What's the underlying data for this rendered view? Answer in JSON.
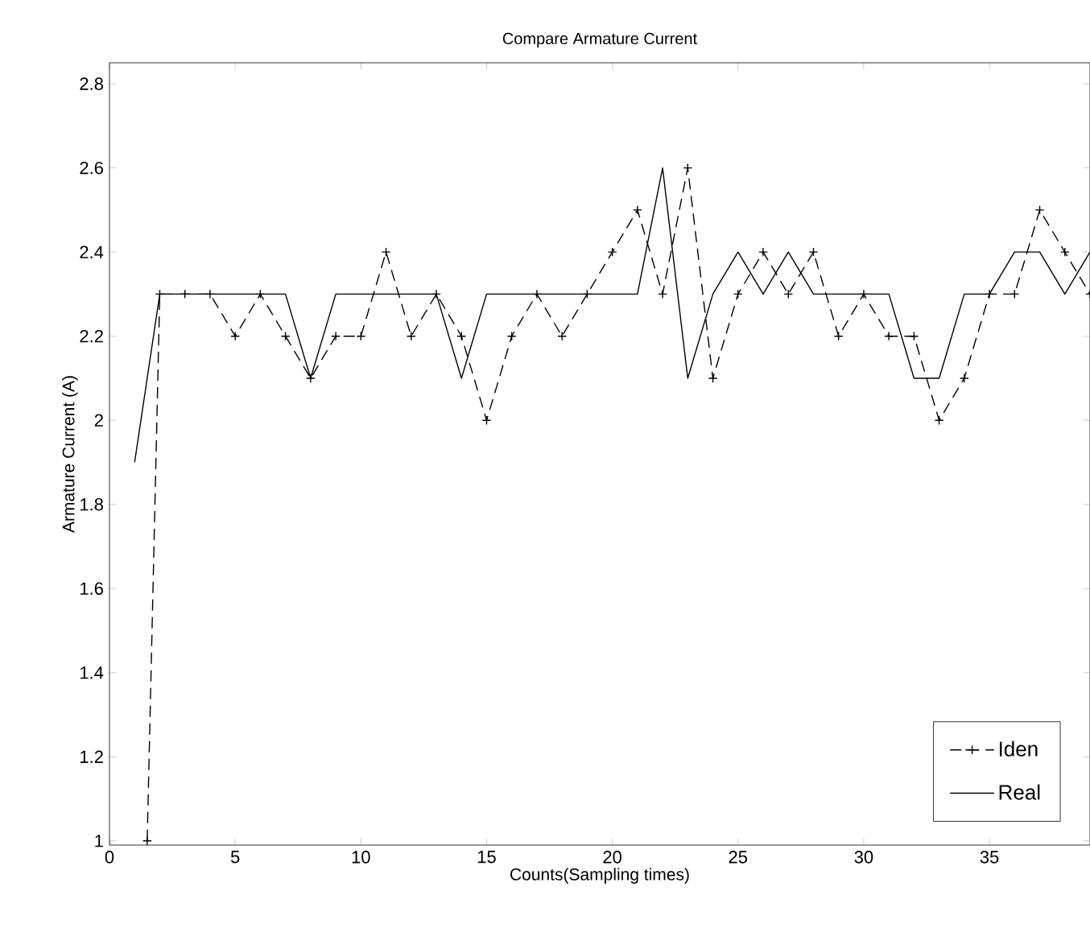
{
  "chart_data": {
    "type": "line",
    "title": "Compare Armature Current",
    "xlabel": "Counts(Sampling times)",
    "ylabel": "Armature Current (A)",
    "xlim": [
      0,
      39
    ],
    "ylim": [
      0.99,
      2.85
    ],
    "xticks": [
      0,
      5,
      10,
      15,
      20,
      25,
      30,
      35
    ],
    "yticks": [
      1,
      1.2,
      1.4,
      1.6,
      1.8,
      2,
      2.2,
      2.4,
      2.6,
      2.8
    ],
    "grid": false,
    "legend": "bottom right",
    "series": [
      {
        "name": "Iden",
        "color": "#000000",
        "line_style": "dashed",
        "marker": "cross",
        "x": [
          1.5,
          2,
          3,
          4,
          5,
          6,
          7,
          8,
          9,
          10,
          11,
          12,
          13,
          14,
          15,
          16,
          17,
          18,
          19,
          20,
          21,
          22,
          23,
          24,
          25,
          26,
          27,
          28,
          29,
          30,
          31,
          32,
          33,
          34,
          35,
          36,
          37,
          38,
          39
        ],
        "values": [
          1.0,
          2.3,
          2.3,
          2.3,
          2.2,
          2.3,
          2.2,
          2.1,
          2.2,
          2.2,
          2.4,
          2.2,
          2.3,
          2.2,
          2.0,
          2.2,
          2.3,
          2.2,
          2.3,
          2.4,
          2.5,
          2.3,
          2.6,
          2.1,
          2.3,
          2.4,
          2.3,
          2.4,
          2.2,
          2.3,
          2.2,
          2.2,
          2.0,
          2.1,
          2.3,
          2.3,
          2.5,
          2.4,
          2.3
        ]
      },
      {
        "name": "Real",
        "color": "#000000",
        "line_style": "solid",
        "marker": "none",
        "x": [
          1,
          2,
          3,
          4,
          5,
          6,
          7,
          8,
          9,
          10,
          11,
          12,
          13,
          14,
          15,
          16,
          17,
          18,
          19,
          20,
          21,
          22,
          23,
          24,
          25,
          26,
          27,
          28,
          29,
          30,
          31,
          32,
          33,
          34,
          35,
          36,
          37,
          38,
          39
        ],
        "values": [
          1.9,
          2.3,
          2.3,
          2.3,
          2.3,
          2.3,
          2.3,
          2.1,
          2.3,
          2.3,
          2.3,
          2.3,
          2.3,
          2.1,
          2.3,
          2.3,
          2.3,
          2.3,
          2.3,
          2.3,
          2.3,
          2.6,
          2.1,
          2.3,
          2.4,
          2.3,
          2.4,
          2.3,
          2.3,
          2.3,
          2.3,
          2.1,
          2.1,
          2.3,
          2.3,
          2.4,
          2.4,
          2.3,
          2.4
        ]
      }
    ]
  }
}
